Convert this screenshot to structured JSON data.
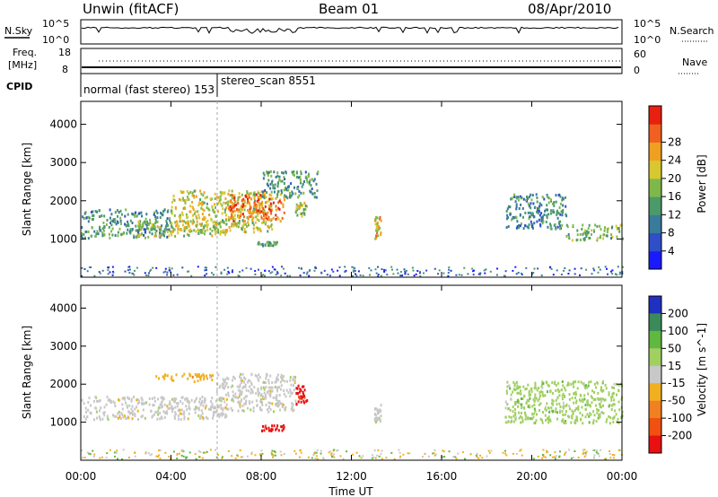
{
  "header": {
    "title": "Unwin (fitACF)",
    "beam": "Beam 01",
    "date": "08/Apr/2010"
  },
  "summary_panels": {
    "nsky_label": "N.Sky",
    "nsearch_label": "N.Search",
    "freq_label_1": "Freq.",
    "freq_label_2": "[MHz]",
    "nave_label": "Nave",
    "cpid_label": "CPID",
    "nsky_ticks": [
      "10^5",
      "10^0"
    ],
    "nsearch_ticks": [
      "10^5",
      "10^0"
    ],
    "freq_ticks": [
      "18",
      "8"
    ],
    "nave_ticks": [
      "60",
      "0"
    ],
    "cpid_segments": [
      {
        "text": "normal (fast stereo) 153",
        "start_hour": 0
      },
      {
        "text": "stereo_scan 8551",
        "start_hour": 6
      }
    ]
  },
  "chart_data": [
    {
      "type": "heatmap",
      "title": "",
      "xlabel": "Time UT",
      "ylabel": "Slant Range [km]",
      "xlim": [
        0,
        24
      ],
      "ylim": [
        0,
        4600
      ],
      "x_ticks": [
        "00:00",
        "04:00",
        "08:00",
        "12:00",
        "16:00",
        "20:00",
        "00:00"
      ],
      "y_ticks": [
        "1000",
        "2000",
        "3000",
        "4000"
      ],
      "colorbar": {
        "label": "Power [dB]",
        "ticks": [
          "4",
          "8",
          "12",
          "16",
          "20",
          "24",
          "28"
        ],
        "range": [
          0,
          30
        ],
        "colors": [
          "#1a1aff",
          "#2e4fc8",
          "#3a7a9a",
          "#4c9a6a",
          "#7fb84a",
          "#d8c830",
          "#f0a020",
          "#f06020",
          "#e82010"
        ]
      },
      "echo_regions": [
        {
          "t_start": 0.0,
          "t_end": 4.0,
          "range_start": 1050,
          "range_end": 1800,
          "level": 0.35
        },
        {
          "t_start": 2.5,
          "t_end": 6.5,
          "range_start": 1100,
          "range_end": 1500,
          "level": 0.55
        },
        {
          "t_start": 4.0,
          "t_end": 8.5,
          "range_start": 1200,
          "range_end": 2300,
          "level": 0.6
        },
        {
          "t_start": 6.5,
          "t_end": 9.0,
          "range_start": 1500,
          "range_end": 2200,
          "level": 0.85
        },
        {
          "t_start": 8.0,
          "t_end": 10.5,
          "range_start": 2100,
          "range_end": 2800,
          "level": 0.35
        },
        {
          "t_start": 9.5,
          "t_end": 10.0,
          "range_start": 1600,
          "range_end": 2000,
          "level": 0.55
        },
        {
          "t_start": 7.8,
          "t_end": 8.7,
          "range_start": 850,
          "range_end": 950,
          "level": 0.4
        },
        {
          "t_start": 13.0,
          "t_end": 13.3,
          "range_start": 1000,
          "range_end": 1600,
          "level": 0.65
        },
        {
          "t_start": 18.8,
          "t_end": 21.5,
          "range_start": 1300,
          "range_end": 2200,
          "level": 0.3
        },
        {
          "t_start": 21.5,
          "t_end": 24.0,
          "range_start": 1000,
          "range_end": 1400,
          "level": 0.45
        }
      ]
    },
    {
      "type": "heatmap",
      "title": "",
      "xlabel": "Time UT",
      "ylabel": "Slant Range [km]",
      "xlim": [
        0,
        24
      ],
      "ylim": [
        0,
        4600
      ],
      "x_ticks": [
        "00:00",
        "04:00",
        "08:00",
        "12:00",
        "16:00",
        "20:00",
        "00:00"
      ],
      "y_ticks": [
        "1000",
        "2000",
        "3000",
        "4000"
      ],
      "colorbar": {
        "label": "Velocity [m s^-1]",
        "ticks": [
          "200",
          "100",
          "50",
          "15",
          "-15",
          "-50",
          "-100",
          "-200"
        ],
        "range": [
          -250,
          250
        ],
        "colors": [
          "#2030c0",
          "#3a8a5a",
          "#60b840",
          "#a0d060",
          "#c8c8c8",
          "#f0b020",
          "#f08020",
          "#f05010",
          "#e81010"
        ]
      },
      "echo_regions": [
        {
          "t_start": 0.0,
          "t_end": 6.5,
          "range_start": 1100,
          "range_end": 1700,
          "velocity": 0
        },
        {
          "t_start": 3.0,
          "t_end": 6.0,
          "range_start": 2100,
          "range_end": 2300,
          "velocity": -40
        },
        {
          "t_start": 6.0,
          "t_end": 9.5,
          "range_start": 1300,
          "range_end": 2300,
          "velocity": -10
        },
        {
          "t_start": 9.5,
          "t_end": 10.0,
          "range_start": 1500,
          "range_end": 2000,
          "velocity": -220
        },
        {
          "t_start": 8.0,
          "t_end": 9.0,
          "range_start": 800,
          "range_end": 950,
          "velocity": -220
        },
        {
          "t_start": 13.0,
          "t_end": 13.3,
          "range_start": 1000,
          "range_end": 1500,
          "velocity": 0
        },
        {
          "t_start": 18.8,
          "t_end": 24.0,
          "range_start": 1000,
          "range_end": 2100,
          "velocity": 20
        }
      ]
    }
  ]
}
